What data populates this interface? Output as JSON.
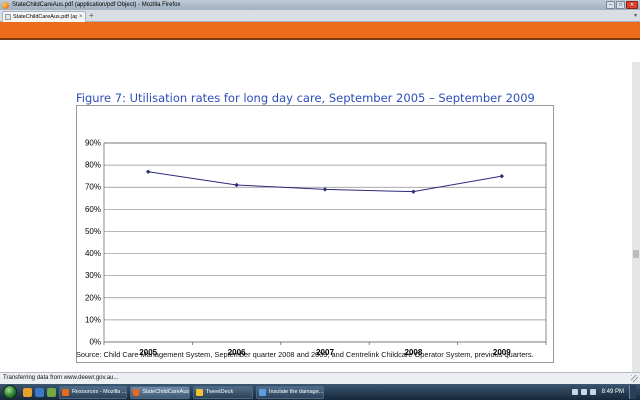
{
  "window": {
    "title": "StateChildCareAus.pdf (application/pdf Object) - Mozilla Firefox",
    "buttons": {
      "minimize": "–",
      "maximize": "□",
      "close": "✕"
    }
  },
  "tabs": [
    {
      "label": "StateChildCareAus.pdf (application/p...",
      "close": "×"
    }
  ],
  "tabbar": {
    "new_tab": "+",
    "list": "▾"
  },
  "figure": {
    "title": "Figure 7:  Utilisation rates for long day care, September 2005 – September 2009",
    "source": "Source:  Child Care Management System, September quarter 2008 and 2009; and Centrelink Childcare Operator System, previous quarters."
  },
  "chart_data": {
    "type": "line",
    "categories": [
      "2005",
      "2006",
      "2007",
      "2008",
      "2009"
    ],
    "series": [
      {
        "values": [
          77,
          71,
          69,
          68,
          75
        ],
        "color": "#2b2b7a"
      }
    ],
    "yticks": [
      "0%",
      "10%",
      "20%",
      "30%",
      "40%",
      "50%",
      "60%",
      "70%",
      "80%",
      "90%"
    ],
    "ylim": [
      0,
      90
    ],
    "grid": true
  },
  "status": {
    "text": "Transferring data from www.deewr.gov.au..."
  },
  "taskbar": {
    "tasks": [
      {
        "label": "Resources - Mozilla ..."
      },
      {
        "label": "StateChildCareAus..."
      },
      {
        "label": "TweetDeck"
      },
      {
        "label": "Insulate the damage..."
      }
    ],
    "clock": "8:49 PM"
  },
  "colors": {
    "accent_band": "#ec6c1b",
    "figure_title": "#2e4db8",
    "line": "#2b2b7a"
  }
}
